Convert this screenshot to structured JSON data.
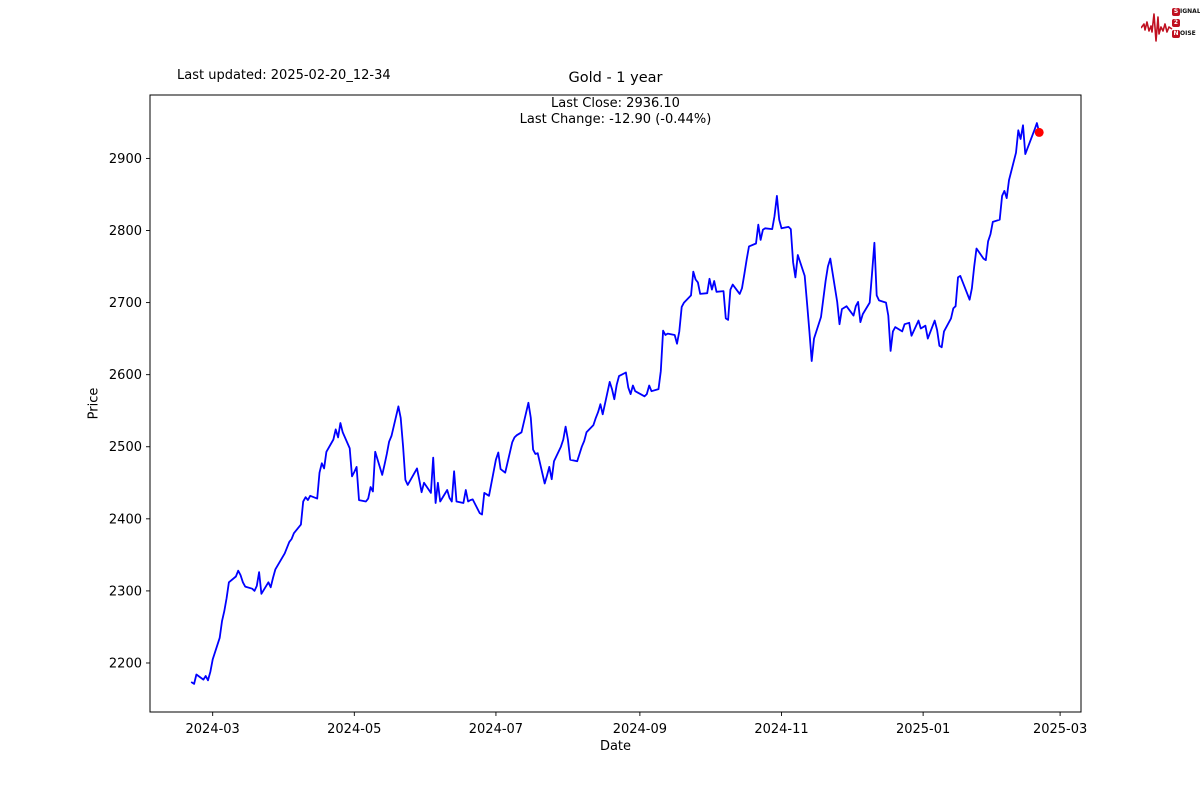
{
  "header": {
    "last_updated": "Last updated: 2025-02-20_12-34"
  },
  "logo": {
    "accent": "#c01020",
    "rows": [
      {
        "boxed": "S",
        "rest": "IGNAL"
      },
      {
        "boxed": "2",
        "rest": ""
      },
      {
        "boxed": "N",
        "rest": "OISE"
      }
    ]
  },
  "chart_data": {
    "type": "line",
    "title": "Gold - 1 year",
    "xlabel": "Date",
    "ylabel": "Price",
    "annotation": {
      "line1": "Last Close: 2936.10",
      "line2": "Last Change: -12.90 (-0.44%)"
    },
    "last_close": 2936.1,
    "last_change": -12.9,
    "last_change_pct": "-0.44%",
    "line_color": "#0000ff",
    "marker_color": "#ff0000",
    "grid": false,
    "legend": "none",
    "x_ticks": [
      {
        "label": "2024-03",
        "date": "2024-03-01"
      },
      {
        "label": "2024-05",
        "date": "2024-05-01"
      },
      {
        "label": "2024-07",
        "date": "2024-07-01"
      },
      {
        "label": "2024-09",
        "date": "2024-09-01"
      },
      {
        "label": "2024-11",
        "date": "2024-11-01"
      },
      {
        "label": "2025-01",
        "date": "2025-01-01"
      },
      {
        "label": "2025-03",
        "date": "2025-03-01"
      }
    ],
    "y_ticks": [
      2200,
      2300,
      2400,
      2500,
      2600,
      2700,
      2800,
      2900
    ],
    "xlim": [
      "2024-02-03",
      "2025-03-10"
    ],
    "ylim": [
      2132,
      2988
    ],
    "series": [
      {
        "name": "Gold",
        "dates": [
          "2024-02-21",
          "2024-02-22",
          "2024-02-23",
          "2024-02-26",
          "2024-02-27",
          "2024-02-28",
          "2024-02-29",
          "2024-03-01",
          "2024-03-04",
          "2024-03-05",
          "2024-03-06",
          "2024-03-07",
          "2024-03-08",
          "2024-03-11",
          "2024-03-12",
          "2024-03-13",
          "2024-03-14",
          "2024-03-15",
          "2024-03-18",
          "2024-03-19",
          "2024-03-20",
          "2024-03-21",
          "2024-03-22",
          "2024-03-25",
          "2024-03-26",
          "2024-03-27",
          "2024-03-28",
          "2024-04-01",
          "2024-04-02",
          "2024-04-03",
          "2024-04-04",
          "2024-04-05",
          "2024-04-08",
          "2024-04-09",
          "2024-04-10",
          "2024-04-11",
          "2024-04-12",
          "2024-04-15",
          "2024-04-16",
          "2024-04-17",
          "2024-04-18",
          "2024-04-19",
          "2024-04-22",
          "2024-04-23",
          "2024-04-24",
          "2024-04-25",
          "2024-04-26",
          "2024-04-29",
          "2024-04-30",
          "2024-05-01",
          "2024-05-02",
          "2024-05-03",
          "2024-05-06",
          "2024-05-07",
          "2024-05-08",
          "2024-05-09",
          "2024-05-10",
          "2024-05-13",
          "2024-05-14",
          "2024-05-15",
          "2024-05-16",
          "2024-05-17",
          "2024-05-20",
          "2024-05-21",
          "2024-05-22",
          "2024-05-23",
          "2024-05-24",
          "2024-05-28",
          "2024-05-29",
          "2024-05-30",
          "2024-05-31",
          "2024-06-03",
          "2024-06-04",
          "2024-06-05",
          "2024-06-06",
          "2024-06-07",
          "2024-06-10",
          "2024-06-11",
          "2024-06-12",
          "2024-06-13",
          "2024-06-14",
          "2024-06-17",
          "2024-06-18",
          "2024-06-19",
          "2024-06-20",
          "2024-06-21",
          "2024-06-24",
          "2024-06-25",
          "2024-06-26",
          "2024-06-27",
          "2024-06-28",
          "2024-07-01",
          "2024-07-02",
          "2024-07-03",
          "2024-07-05",
          "2024-07-08",
          "2024-07-09",
          "2024-07-10",
          "2024-07-11",
          "2024-07-12",
          "2024-07-15",
          "2024-07-16",
          "2024-07-17",
          "2024-07-18",
          "2024-07-19",
          "2024-07-22",
          "2024-07-23",
          "2024-07-24",
          "2024-07-25",
          "2024-07-26",
          "2024-07-29",
          "2024-07-30",
          "2024-07-31",
          "2024-08-01",
          "2024-08-02",
          "2024-08-05",
          "2024-08-06",
          "2024-08-07",
          "2024-08-08",
          "2024-08-09",
          "2024-08-12",
          "2024-08-13",
          "2024-08-14",
          "2024-08-15",
          "2024-08-16",
          "2024-08-19",
          "2024-08-20",
          "2024-08-21",
          "2024-08-22",
          "2024-08-23",
          "2024-08-26",
          "2024-08-27",
          "2024-08-28",
          "2024-08-29",
          "2024-08-30",
          "2024-09-03",
          "2024-09-04",
          "2024-09-05",
          "2024-09-06",
          "2024-09-09",
          "2024-09-10",
          "2024-09-11",
          "2024-09-12",
          "2024-09-13",
          "2024-09-16",
          "2024-09-17",
          "2024-09-18",
          "2024-09-19",
          "2024-09-20",
          "2024-09-23",
          "2024-09-24",
          "2024-09-25",
          "2024-09-26",
          "2024-09-27",
          "2024-09-30",
          "2024-10-01",
          "2024-10-02",
          "2024-10-03",
          "2024-10-04",
          "2024-10-07",
          "2024-10-08",
          "2024-10-09",
          "2024-10-10",
          "2024-10-11",
          "2024-10-14",
          "2024-10-15",
          "2024-10-16",
          "2024-10-17",
          "2024-10-18",
          "2024-10-21",
          "2024-10-22",
          "2024-10-23",
          "2024-10-24",
          "2024-10-25",
          "2024-10-28",
          "2024-10-29",
          "2024-10-30",
          "2024-10-31",
          "2024-11-01",
          "2024-11-04",
          "2024-11-05",
          "2024-11-06",
          "2024-11-07",
          "2024-11-08",
          "2024-11-11",
          "2024-11-12",
          "2024-11-13",
          "2024-11-14",
          "2024-11-15",
          "2024-11-18",
          "2024-11-19",
          "2024-11-20",
          "2024-11-21",
          "2024-11-22",
          "2024-11-25",
          "2024-11-26",
          "2024-11-27",
          "2024-11-29",
          "2024-12-02",
          "2024-12-03",
          "2024-12-04",
          "2024-12-05",
          "2024-12-06",
          "2024-12-09",
          "2024-12-10",
          "2024-12-11",
          "2024-12-12",
          "2024-12-13",
          "2024-12-16",
          "2024-12-17",
          "2024-12-18",
          "2024-12-19",
          "2024-12-20",
          "2024-12-23",
          "2024-12-24",
          "2024-12-26",
          "2024-12-27",
          "2024-12-30",
          "2024-12-31",
          "2025-01-02",
          "2025-01-03",
          "2025-01-06",
          "2025-01-07",
          "2025-01-08",
          "2025-01-09",
          "2025-01-10",
          "2025-01-13",
          "2025-01-14",
          "2025-01-15",
          "2025-01-16",
          "2025-01-17",
          "2025-01-21",
          "2025-01-22",
          "2025-01-23",
          "2025-01-24",
          "2025-01-27",
          "2025-01-28",
          "2025-01-29",
          "2025-01-30",
          "2025-01-31",
          "2025-02-03",
          "2025-02-04",
          "2025-02-05",
          "2025-02-06",
          "2025-02-07",
          "2025-02-10",
          "2025-02-11",
          "2025-02-12",
          "2025-02-13",
          "2025-02-14",
          "2025-02-18",
          "2025-02-19",
          "2025-02-20"
        ],
        "prices": [
          2173,
          2171,
          2184,
          2177,
          2182,
          2176,
          2188,
          2205,
          2235,
          2258,
          2272,
          2290,
          2312,
          2320,
          2328,
          2322,
          2312,
          2306,
          2303,
          2300,
          2307,
          2326,
          2296,
          2312,
          2305,
          2318,
          2330,
          2352,
          2360,
          2368,
          2372,
          2380,
          2392,
          2424,
          2430,
          2426,
          2432,
          2428,
          2464,
          2477,
          2470,
          2493,
          2510,
          2524,
          2513,
          2533,
          2520,
          2498,
          2459,
          2465,
          2472,
          2426,
          2424,
          2428,
          2444,
          2438,
          2493,
          2461,
          2475,
          2490,
          2507,
          2515,
          2556,
          2540,
          2500,
          2454,
          2447,
          2470,
          2454,
          2437,
          2450,
          2436,
          2485,
          2422,
          2450,
          2424,
          2440,
          2429,
          2424,
          2466,
          2424,
          2422,
          2440,
          2424,
          2426,
          2427,
          2408,
          2406,
          2436,
          2434,
          2432,
          2482,
          2492,
          2469,
          2464,
          2506,
          2513,
          2516,
          2518,
          2520,
          2561,
          2540,
          2496,
          2490,
          2491,
          2449,
          2460,
          2472,
          2455,
          2480,
          2500,
          2510,
          2528,
          2510,
          2482,
          2480,
          2490,
          2500,
          2508,
          2520,
          2530,
          2540,
          2548,
          2559,
          2545,
          2590,
          2580,
          2566,
          2586,
          2598,
          2603,
          2582,
          2573,
          2585,
          2577,
          2570,
          2573,
          2585,
          2577,
          2580,
          2605,
          2661,
          2655,
          2657,
          2655,
          2643,
          2660,
          2694,
          2700,
          2710,
          2743,
          2732,
          2728,
          2712,
          2713,
          2733,
          2718,
          2730,
          2715,
          2716,
          2678,
          2676,
          2718,
          2725,
          2712,
          2720,
          2740,
          2760,
          2778,
          2782,
          2808,
          2787,
          2801,
          2803,
          2802,
          2820,
          2848,
          2815,
          2803,
          2805,
          2802,
          2756,
          2735,
          2766,
          2737,
          2700,
          2660,
          2619,
          2650,
          2680,
          2705,
          2730,
          2750,
          2761,
          2701,
          2670,
          2691,
          2695,
          2682,
          2695,
          2701,
          2673,
          2684,
          2700,
          2740,
          2783,
          2710,
          2703,
          2700,
          2682,
          2633,
          2660,
          2666,
          2660,
          2670,
          2672,
          2654,
          2675,
          2664,
          2668,
          2650,
          2675,
          2662,
          2640,
          2638,
          2660,
          2678,
          2692,
          2695,
          2735,
          2737,
          2704,
          2720,
          2750,
          2775,
          2761,
          2759,
          2785,
          2795,
          2812,
          2815,
          2848,
          2855,
          2845,
          2870,
          2908,
          2939,
          2927,
          2946,
          2906,
          2940,
          2949,
          2936.1
        ]
      }
    ]
  }
}
